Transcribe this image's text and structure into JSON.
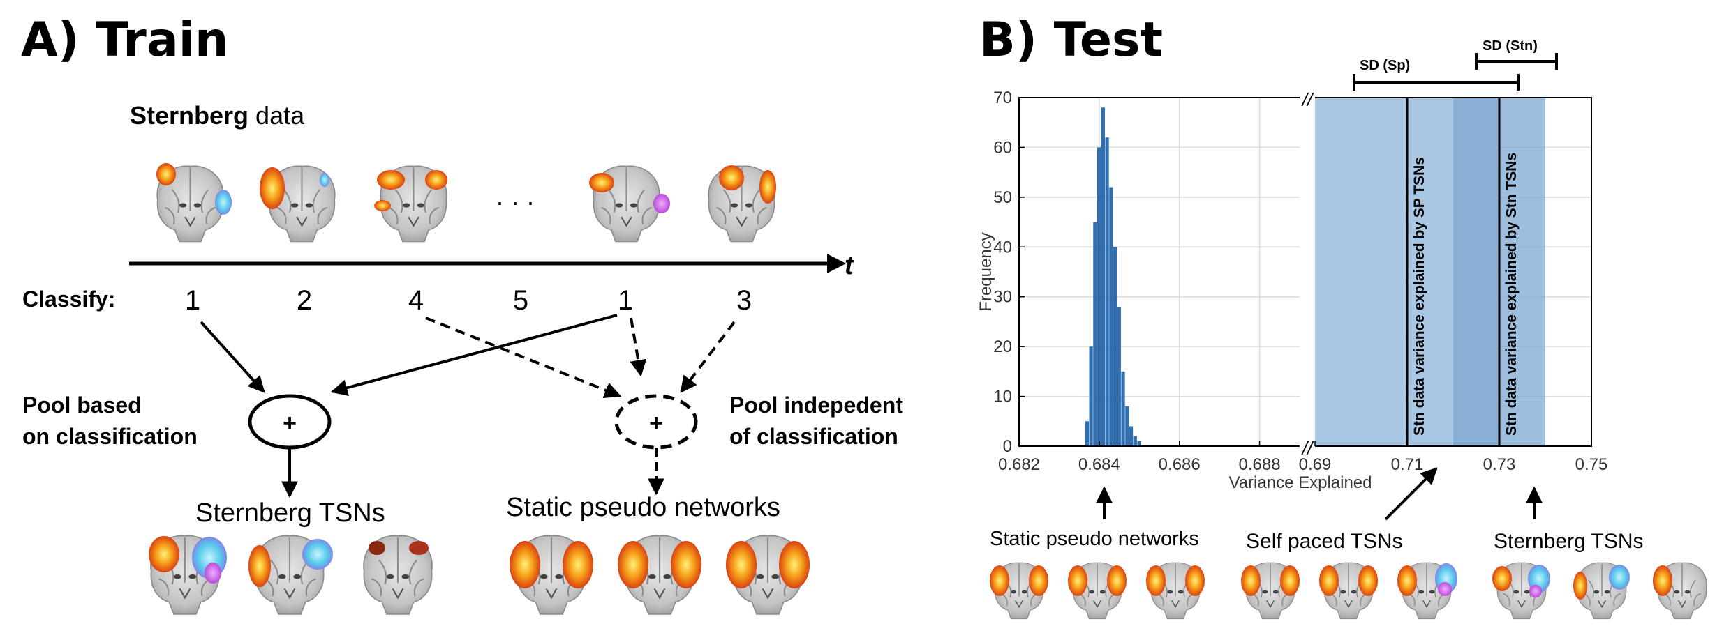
{
  "panel_a": {
    "title": "A) Train",
    "data_label_bold": "Sternberg",
    "data_label_rest": " data",
    "ellipsis": "· · ·",
    "time_axis_label": "t",
    "classify_label": "Classify:",
    "classes": [
      "1",
      "2",
      "4",
      "5",
      "1",
      "3"
    ],
    "pool_left_line1": "Pool based",
    "pool_left_line2": "on classification",
    "pool_right_line1": "Pool indepedent",
    "pool_right_line2": "of classification",
    "plus": "+",
    "output_left": "Sternberg TSNs",
    "output_right": "Static pseudo networks"
  },
  "panel_b": {
    "title": "B) Test",
    "ylabel": "Frequency",
    "xlabel": "Variance Explained",
    "yticks": [
      "70",
      "60",
      "50",
      "40",
      "30",
      "20",
      "10",
      "0"
    ],
    "xticks_left": [
      "0.682",
      "0.684",
      "0.686",
      "0.688"
    ],
    "xticks_right": [
      "0.69",
      "0.71",
      "0.73",
      "0.75"
    ],
    "break_mark": "//",
    "sd_sp_label": "SD (Sp)",
    "sd_stn_label": "SD (Stn)",
    "line_sp_label": "Stn data variance explained by SP TSNs",
    "line_stn_label": "Stn data variance explained by Stn TSNs",
    "caption_static": "Static pseudo networks",
    "caption_selfpaced": "Self paced TSNs",
    "caption_sternberg": "Sternberg TSNs"
  },
  "chart_data": {
    "type": "bar",
    "title": "",
    "xlabel": "Variance Explained",
    "ylabel": "Frequency",
    "ylim": [
      0,
      70
    ],
    "xlim_left": [
      0.682,
      0.689
    ],
    "xlim_right": [
      0.69,
      0.75
    ],
    "histogram_x": [
      0.6837,
      0.6838,
      0.6839,
      0.684,
      0.6841,
      0.6842,
      0.6843,
      0.6844,
      0.6845,
      0.6846,
      0.6847,
      0.6848,
      0.6849,
      0.685
    ],
    "histogram_counts": [
      5,
      20,
      45,
      60,
      68,
      62,
      52,
      40,
      28,
      15,
      8,
      4,
      2,
      1
    ],
    "vertical_lines": [
      {
        "name": "Stn data variance explained by SP TSNs",
        "x": 0.71
      },
      {
        "name": "Stn data variance explained by Stn TSNs",
        "x": 0.73
      }
    ],
    "sd_bands": [
      {
        "name": "SD (Sp)",
        "x": [
          0.69,
          0.73
        ]
      },
      {
        "name": "SD (Stn)",
        "x": [
          0.72,
          0.74
        ]
      }
    ],
    "colors": {
      "hist": "#2f6eb0",
      "band_light": "#a9c6e3",
      "band_dark": "#7ea8d2",
      "line": "#000000"
    },
    "grid": true
  },
  "colors": {
    "brain_gray": "#bdbdbd",
    "hot": "#e8541b",
    "hot_light": "#f7c531",
    "cool": "#4fd0e8",
    "magenta": "#c05ae8"
  }
}
